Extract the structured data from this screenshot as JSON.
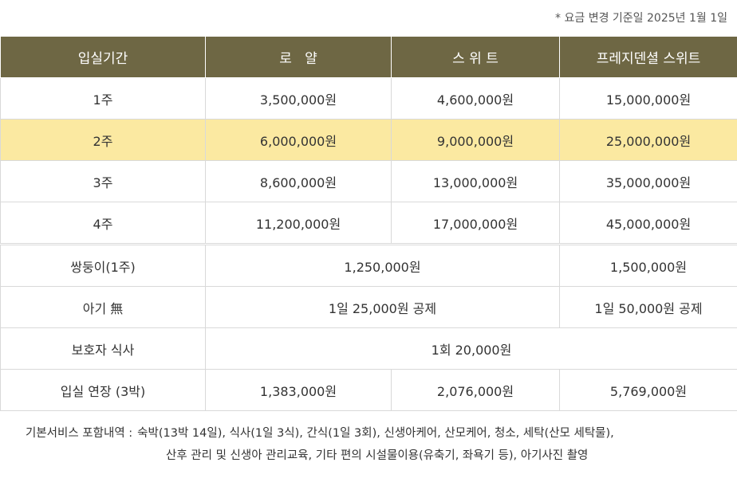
{
  "note": "* 요금 변경 기준일  2025년 1월 1일",
  "header": [
    "입실기간",
    "로   얄",
    "스 위 트",
    "프레지덴셜 스위트"
  ],
  "weeks": [
    {
      "period": "1주",
      "royal": "3,500,000원",
      "suite": "4,600,000원",
      "presidential": "15,000,000원"
    },
    {
      "period": "2주",
      "royal": "6,000,000원",
      "suite": "9,000,000원",
      "presidential": "25,000,000원"
    },
    {
      "period": "3주",
      "royal": "8,600,000원",
      "suite": "13,000,000원",
      "presidential": "35,000,000원"
    },
    {
      "period": "4주",
      "royal": "11,200,000원",
      "suite": "17,000,000원",
      "presidential": "45,000,000원"
    }
  ],
  "twins": {
    "label": "쌍둥이(1주)",
    "royal_suite": "1,250,000원",
    "presidential": "1,500,000원"
  },
  "no_baby": {
    "label": "아기 無",
    "royal_suite": "1일 25,000원 공제",
    "presidential": "1일 50,000원 공제"
  },
  "guardian_meal": {
    "label": "보호자 식사",
    "value": "1회 20,000원"
  },
  "extension": {
    "label": "입실 연장 (3박)",
    "royal": "1,383,000원",
    "suite": "2,076,000원",
    "presidential": "5,769,000원"
  },
  "footer": {
    "label": "기본서비스  포함내역 :",
    "line1": "숙박(13박 14일), 식사(1일 3식), 간식(1일 3회), 신생아케어, 산모케어, 청소, 세탁(산모 세탁물),",
    "line2": "산후 관리 및  신생아 관리교육, 기타 편의 시설물이용(유축기, 좌욕기 등), 아기사진 촬영"
  }
}
